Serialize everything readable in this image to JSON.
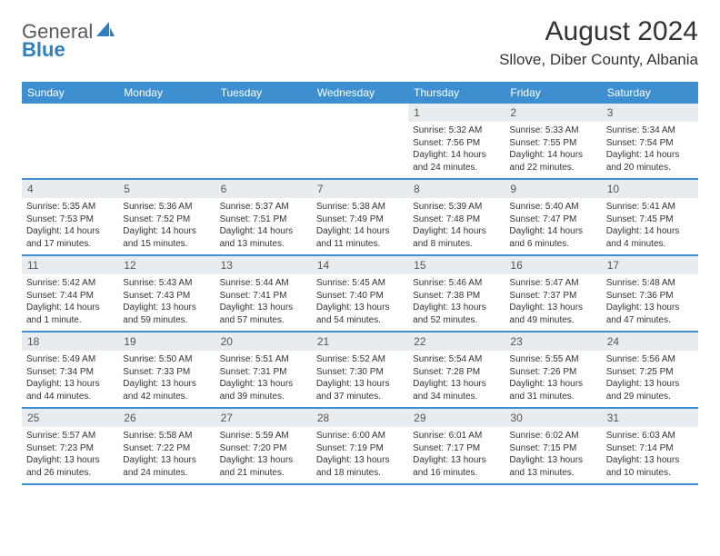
{
  "logo": {
    "text1": "General",
    "text2": "Blue",
    "icon_color": "#2e7fc1"
  },
  "title": "August 2024",
  "location": "Sllove, Diber County, Albania",
  "colors": {
    "header_bg": "#3e8fd0",
    "header_text": "#ffffff",
    "daynum_bg": "#e9ecef",
    "daynum_text": "#555555",
    "body_text": "#333333",
    "logo_gray": "#5a5a5a",
    "logo_blue": "#2e7fc1",
    "row_border": "#3e8fd0"
  },
  "weekdays": [
    "Sunday",
    "Monday",
    "Tuesday",
    "Wednesday",
    "Thursday",
    "Friday",
    "Saturday"
  ],
  "weeks": [
    [
      {
        "empty": true
      },
      {
        "empty": true
      },
      {
        "empty": true
      },
      {
        "empty": true
      },
      {
        "num": "1",
        "sunrise": "Sunrise: 5:32 AM",
        "sunset": "Sunset: 7:56 PM",
        "daylight": "Daylight: 14 hours and 24 minutes."
      },
      {
        "num": "2",
        "sunrise": "Sunrise: 5:33 AM",
        "sunset": "Sunset: 7:55 PM",
        "daylight": "Daylight: 14 hours and 22 minutes."
      },
      {
        "num": "3",
        "sunrise": "Sunrise: 5:34 AM",
        "sunset": "Sunset: 7:54 PM",
        "daylight": "Daylight: 14 hours and 20 minutes."
      }
    ],
    [
      {
        "num": "4",
        "sunrise": "Sunrise: 5:35 AM",
        "sunset": "Sunset: 7:53 PM",
        "daylight": "Daylight: 14 hours and 17 minutes."
      },
      {
        "num": "5",
        "sunrise": "Sunrise: 5:36 AM",
        "sunset": "Sunset: 7:52 PM",
        "daylight": "Daylight: 14 hours and 15 minutes."
      },
      {
        "num": "6",
        "sunrise": "Sunrise: 5:37 AM",
        "sunset": "Sunset: 7:51 PM",
        "daylight": "Daylight: 14 hours and 13 minutes."
      },
      {
        "num": "7",
        "sunrise": "Sunrise: 5:38 AM",
        "sunset": "Sunset: 7:49 PM",
        "daylight": "Daylight: 14 hours and 11 minutes."
      },
      {
        "num": "8",
        "sunrise": "Sunrise: 5:39 AM",
        "sunset": "Sunset: 7:48 PM",
        "daylight": "Daylight: 14 hours and 8 minutes."
      },
      {
        "num": "9",
        "sunrise": "Sunrise: 5:40 AM",
        "sunset": "Sunset: 7:47 PM",
        "daylight": "Daylight: 14 hours and 6 minutes."
      },
      {
        "num": "10",
        "sunrise": "Sunrise: 5:41 AM",
        "sunset": "Sunset: 7:45 PM",
        "daylight": "Daylight: 14 hours and 4 minutes."
      }
    ],
    [
      {
        "num": "11",
        "sunrise": "Sunrise: 5:42 AM",
        "sunset": "Sunset: 7:44 PM",
        "daylight": "Daylight: 14 hours and 1 minute."
      },
      {
        "num": "12",
        "sunrise": "Sunrise: 5:43 AM",
        "sunset": "Sunset: 7:43 PM",
        "daylight": "Daylight: 13 hours and 59 minutes."
      },
      {
        "num": "13",
        "sunrise": "Sunrise: 5:44 AM",
        "sunset": "Sunset: 7:41 PM",
        "daylight": "Daylight: 13 hours and 57 minutes."
      },
      {
        "num": "14",
        "sunrise": "Sunrise: 5:45 AM",
        "sunset": "Sunset: 7:40 PM",
        "daylight": "Daylight: 13 hours and 54 minutes."
      },
      {
        "num": "15",
        "sunrise": "Sunrise: 5:46 AM",
        "sunset": "Sunset: 7:38 PM",
        "daylight": "Daylight: 13 hours and 52 minutes."
      },
      {
        "num": "16",
        "sunrise": "Sunrise: 5:47 AM",
        "sunset": "Sunset: 7:37 PM",
        "daylight": "Daylight: 13 hours and 49 minutes."
      },
      {
        "num": "17",
        "sunrise": "Sunrise: 5:48 AM",
        "sunset": "Sunset: 7:36 PM",
        "daylight": "Daylight: 13 hours and 47 minutes."
      }
    ],
    [
      {
        "num": "18",
        "sunrise": "Sunrise: 5:49 AM",
        "sunset": "Sunset: 7:34 PM",
        "daylight": "Daylight: 13 hours and 44 minutes."
      },
      {
        "num": "19",
        "sunrise": "Sunrise: 5:50 AM",
        "sunset": "Sunset: 7:33 PM",
        "daylight": "Daylight: 13 hours and 42 minutes."
      },
      {
        "num": "20",
        "sunrise": "Sunrise: 5:51 AM",
        "sunset": "Sunset: 7:31 PM",
        "daylight": "Daylight: 13 hours and 39 minutes."
      },
      {
        "num": "21",
        "sunrise": "Sunrise: 5:52 AM",
        "sunset": "Sunset: 7:30 PM",
        "daylight": "Daylight: 13 hours and 37 minutes."
      },
      {
        "num": "22",
        "sunrise": "Sunrise: 5:54 AM",
        "sunset": "Sunset: 7:28 PM",
        "daylight": "Daylight: 13 hours and 34 minutes."
      },
      {
        "num": "23",
        "sunrise": "Sunrise: 5:55 AM",
        "sunset": "Sunset: 7:26 PM",
        "daylight": "Daylight: 13 hours and 31 minutes."
      },
      {
        "num": "24",
        "sunrise": "Sunrise: 5:56 AM",
        "sunset": "Sunset: 7:25 PM",
        "daylight": "Daylight: 13 hours and 29 minutes."
      }
    ],
    [
      {
        "num": "25",
        "sunrise": "Sunrise: 5:57 AM",
        "sunset": "Sunset: 7:23 PM",
        "daylight": "Daylight: 13 hours and 26 minutes."
      },
      {
        "num": "26",
        "sunrise": "Sunrise: 5:58 AM",
        "sunset": "Sunset: 7:22 PM",
        "daylight": "Daylight: 13 hours and 24 minutes."
      },
      {
        "num": "27",
        "sunrise": "Sunrise: 5:59 AM",
        "sunset": "Sunset: 7:20 PM",
        "daylight": "Daylight: 13 hours and 21 minutes."
      },
      {
        "num": "28",
        "sunrise": "Sunrise: 6:00 AM",
        "sunset": "Sunset: 7:19 PM",
        "daylight": "Daylight: 13 hours and 18 minutes."
      },
      {
        "num": "29",
        "sunrise": "Sunrise: 6:01 AM",
        "sunset": "Sunset: 7:17 PM",
        "daylight": "Daylight: 13 hours and 16 minutes."
      },
      {
        "num": "30",
        "sunrise": "Sunrise: 6:02 AM",
        "sunset": "Sunset: 7:15 PM",
        "daylight": "Daylight: 13 hours and 13 minutes."
      },
      {
        "num": "31",
        "sunrise": "Sunrise: 6:03 AM",
        "sunset": "Sunset: 7:14 PM",
        "daylight": "Daylight: 13 hours and 10 minutes."
      }
    ]
  ]
}
